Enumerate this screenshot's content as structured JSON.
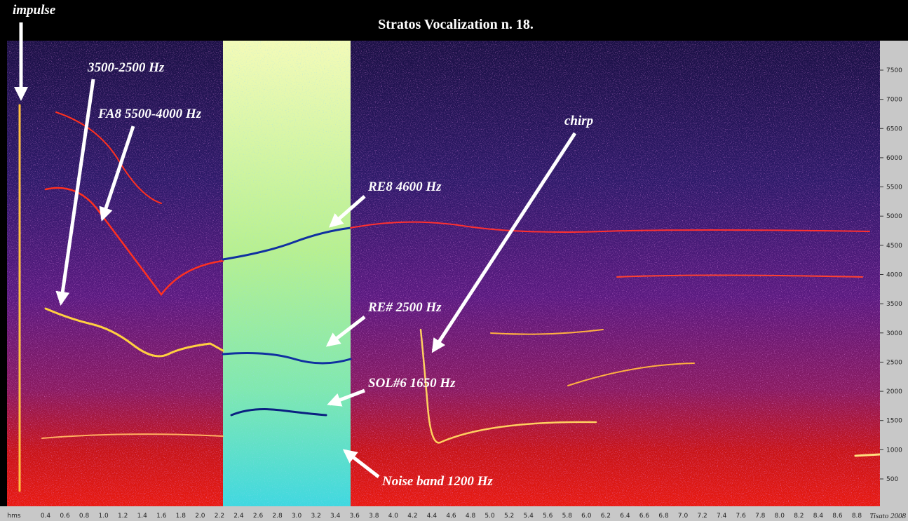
{
  "title": "Stratos Vocalization n. 18.",
  "annotations": [
    "impulse",
    "3500-2500 Hz",
    "FA8 5500-4000 Hz",
    "chirp",
    "RE8 4600 Hz",
    "RE# 2500 Hz",
    "SOL#6 1650 Hz",
    "Noise band 1200 Hz"
  ],
  "y_axis_labels": [
    "500",
    "1000",
    "1500",
    "2000",
    "2500",
    "3000",
    "3500",
    "4000",
    "4500",
    "5000",
    "5500",
    "6000",
    "6500",
    "7000",
    "7500"
  ],
  "x_axis_labels": [
    "hms",
    "0.4",
    "0.6",
    "0.8",
    "1.0",
    "1.2",
    "1.4",
    "1.6",
    "1.8",
    "2.0",
    "2.2",
    "2.4",
    "2.6",
    "2.8",
    "3.0",
    "3.2",
    "3.4",
    "3.6",
    "3.8",
    "4.0",
    "4.2",
    "4.4",
    "4.6",
    "4.8",
    "5.0",
    "5.2",
    "5.4",
    "5.6",
    "5.8",
    "6.0",
    "6.2",
    "6.4",
    "6.6",
    "6.8",
    "7.0",
    "7.2",
    "7.4",
    "7.6",
    "7.8",
    "8.0",
    "8.2",
    "8.4",
    "8.6",
    "8.8"
  ],
  "credit": "Tisato 2008"
}
